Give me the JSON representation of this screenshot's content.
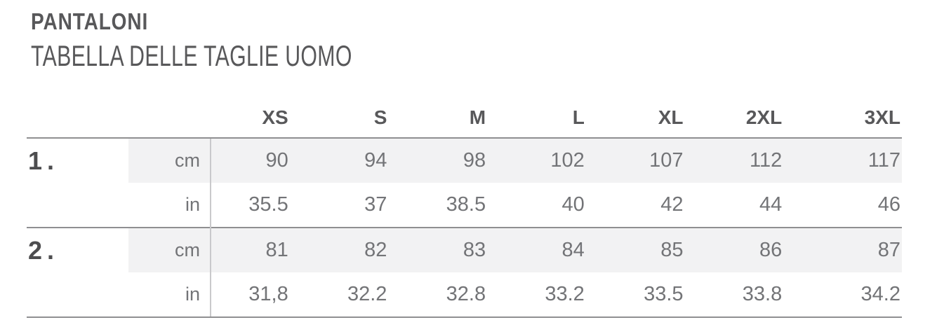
{
  "header": {
    "title": "PANTALONI",
    "subtitle": "TABELLA DELLE TAGLIE UOMO"
  },
  "table": {
    "size_headers": [
      "XS",
      "S",
      "M",
      "L",
      "XL",
      "2XL",
      "3XL"
    ],
    "unit_labels": {
      "cm": "cm",
      "in": "in"
    },
    "measurements": [
      {
        "label": "1.",
        "cm": [
          "90",
          "94",
          "98",
          "102",
          "107",
          "112",
          "117"
        ],
        "in": [
          "35.5",
          "37",
          "38.5",
          "40",
          "42",
          "44",
          "46"
        ]
      },
      {
        "label": "2.",
        "cm": [
          "81",
          "82",
          "83",
          "84",
          "85",
          "86",
          "87"
        ],
        "in": [
          "31,8",
          "32.2",
          "32.8",
          "33.2",
          "33.5",
          "33.8",
          "34.2"
        ]
      }
    ]
  },
  "colors": {
    "heading_text": "#58585a",
    "value_text": "#737477",
    "row_band_bg": "#f2f2f3",
    "rule_line": "#8f8f91",
    "divider_line": "#c9c9cb"
  }
}
